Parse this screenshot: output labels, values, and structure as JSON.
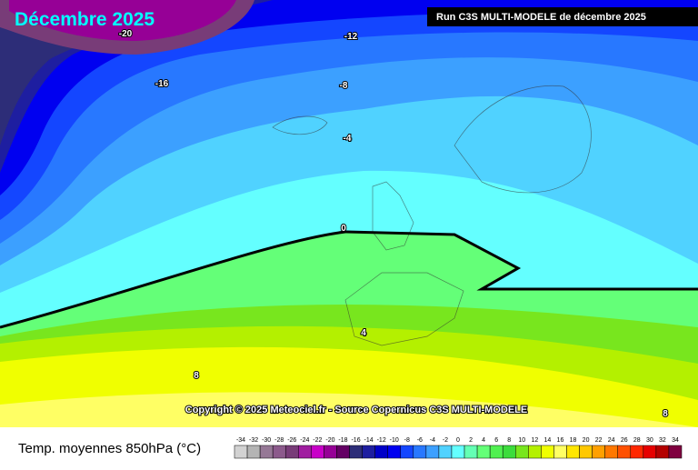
{
  "map": {
    "title": "Décembre 2025",
    "run_label": "Run C3S MULTI-MODELE de décembre 2025",
    "copyright": "Copyright © 2025 Meteociel.fr - Source Copernicus C3S MULTI-MODELE",
    "contour_labels": [
      -20,
      -12,
      -16,
      -8,
      -4,
      0,
      4,
      8,
      8
    ]
  },
  "legend": {
    "title": "Temp. moyennes 850hPa (°C)",
    "ticks": [
      -34,
      -32,
      -30,
      -28,
      -26,
      -24,
      -22,
      -20,
      -18,
      -16,
      -14,
      -12,
      -10,
      -8,
      -6,
      -4,
      -2,
      0,
      2,
      4,
      6,
      8,
      10,
      12,
      14,
      16,
      18,
      20,
      22,
      24,
      26,
      28,
      30,
      32,
      34
    ],
    "colors": [
      "#d2d2d2",
      "#b4b4b4",
      "#967896",
      "#8c5a8c",
      "#783c78",
      "#a01ea0",
      "#c800c8",
      "#960096",
      "#640064",
      "#2d2d78",
      "#1e1ea0",
      "#0000c8",
      "#0000f0",
      "#1446ff",
      "#2878ff",
      "#3ca0ff",
      "#50d2ff",
      "#64ffff",
      "#64ffb4",
      "#64ff78",
      "#50f050",
      "#3cdc3c",
      "#78e61e",
      "#b4f000",
      "#f0ff00",
      "#ffff64",
      "#ffe600",
      "#ffc800",
      "#ffa000",
      "#ff7800",
      "#ff5000",
      "#ff2800",
      "#e60000",
      "#b40000",
      "#800040"
    ]
  }
}
